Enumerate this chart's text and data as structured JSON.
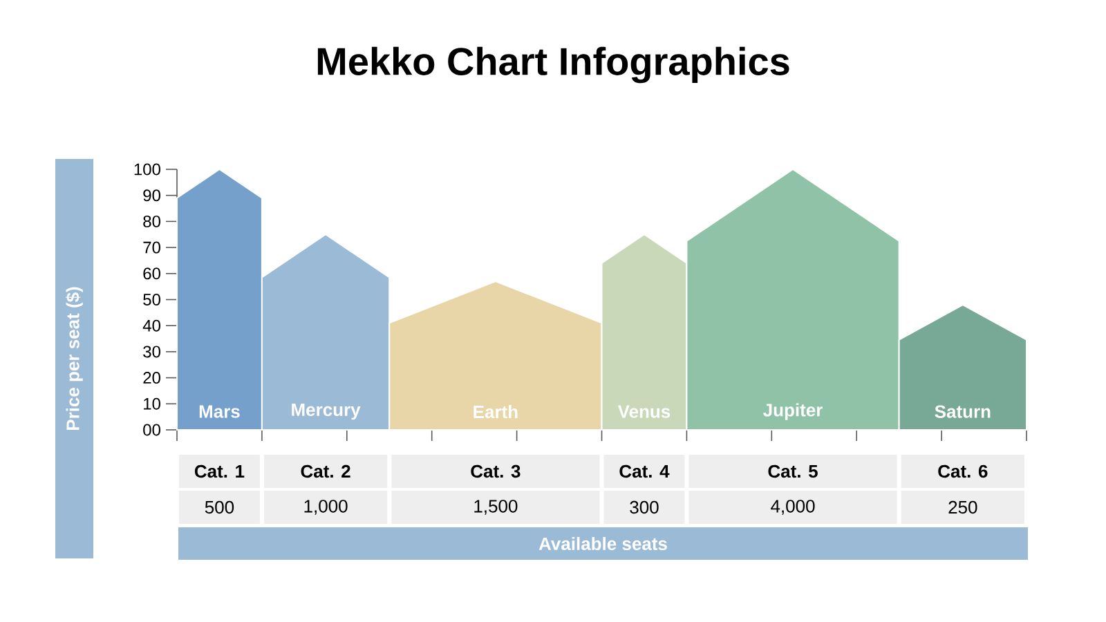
{
  "chart_data": {
    "type": "bar",
    "title": "Mekko Chart Infographics",
    "ylabel": "Price per seat ($)",
    "categories": [
      "Mars",
      "Mercury",
      "Earth",
      "Venus",
      "Jupiter",
      "Saturn"
    ],
    "values": [
      100,
      75,
      57,
      75,
      100,
      48
    ],
    "colors": [
      "#74a0cb",
      "#9bbad6",
      "#e8d5a8",
      "#c8d8b8",
      "#8fc2a6",
      "#78a896"
    ],
    "ylim": [
      0,
      100
    ],
    "yticks": [
      {
        "value": 0,
        "label": "00"
      },
      10,
      20,
      30,
      40,
      50,
      60,
      70,
      80,
      90,
      100
    ],
    "tick_labels": "y",
    "annotations": [
      "Cat. 1",
      "Cat. 2",
      "Cat. 3",
      "Cat. 4",
      "Cat. 5",
      "Cat. 6",
      "500",
      "1,000",
      "1,500",
      "300",
      "4,000",
      "250",
      "Available seats"
    ]
  }
}
